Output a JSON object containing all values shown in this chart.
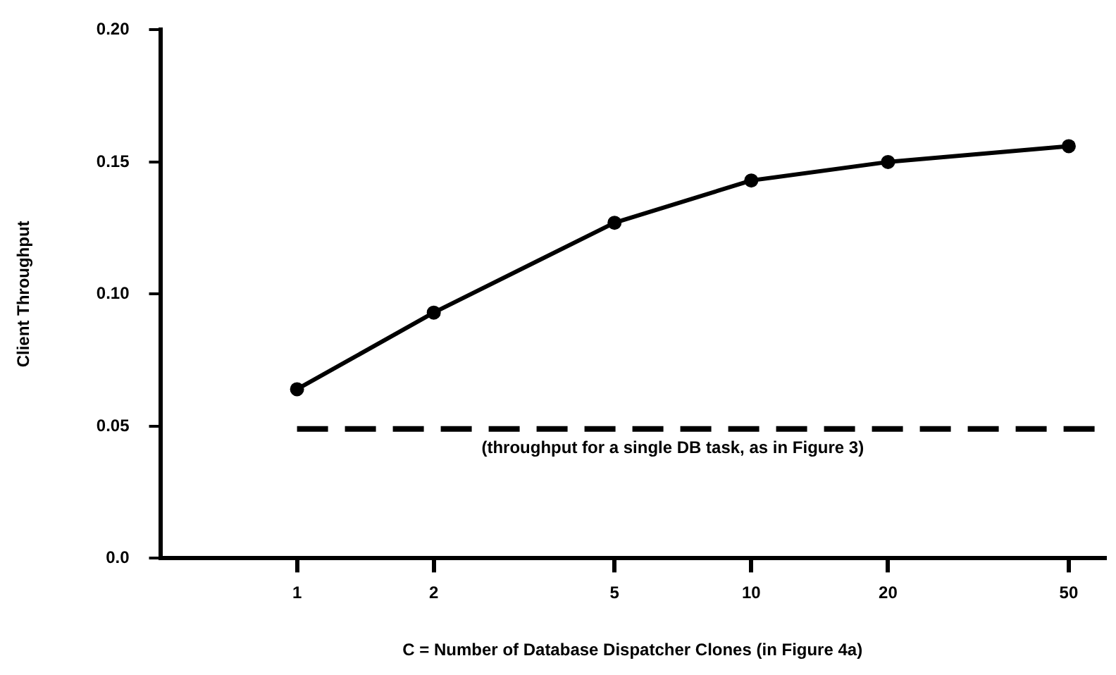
{
  "chart_data": {
    "type": "line",
    "xlabel": "C = Number of Database Dispatcher Clones (in Figure 4a)",
    "ylabel": "Client Throughput",
    "x": [
      1,
      2,
      5,
      10,
      20,
      50
    ],
    "series": [
      {
        "color": "#000000",
        "values": [
          0.064,
          0.093,
          0.127,
          0.143,
          0.15,
          0.156
        ]
      }
    ],
    "log": "x",
    "xlim": [
      0.5,
      60
    ],
    "xticks": [
      1,
      2,
      5,
      10,
      20,
      50
    ],
    "ylim": [
      0,
      0.2
    ],
    "yticks": [
      {
        "value": 0,
        "label": "0.0"
      },
      0.05,
      {
        "value": 0.1,
        "label": "0.10"
      },
      0.15,
      {
        "value": 0.2,
        "label": "0.20"
      }
    ],
    "ref_lines": [
      {
        "axis": "y",
        "value": 0.049,
        "label": "(throughput for a single DB task, as in Figure 3)",
        "color": "#000000",
        "line_style": "dashed"
      }
    ],
    "marker": "circle",
    "line_style": "solid",
    "grid": false,
    "legend": false
  }
}
